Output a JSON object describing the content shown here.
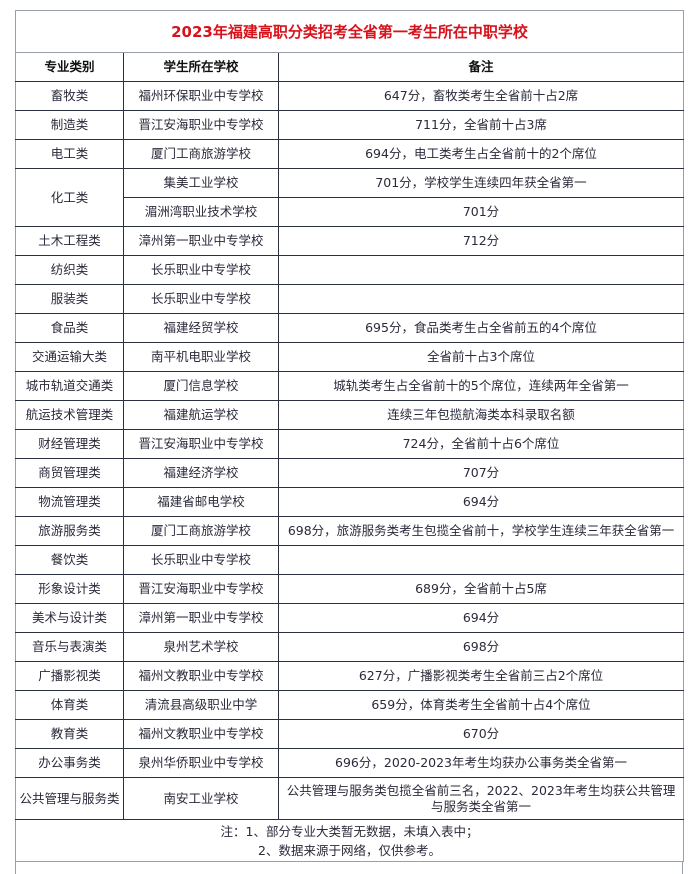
{
  "title": "2023年福建高职分类招考全省第一考生所在中职学校",
  "headers": [
    "专业类别",
    "学生所在学校",
    "备注"
  ],
  "rows": [
    {
      "category": "畜牧类",
      "schools": [
        {
          "school": "福州环保职业中专学校",
          "note": "647分，畜牧类考生全省前十占2席"
        }
      ]
    },
    {
      "category": "制造类",
      "schools": [
        {
          "school": "晋江安海职业中专学校",
          "note": "711分，全省前十占3席"
        }
      ]
    },
    {
      "category": "电工类",
      "schools": [
        {
          "school": "厦门工商旅游学校",
          "note": "694分，电工类考生占全省前十的2个席位"
        }
      ]
    },
    {
      "category": "化工类",
      "schools": [
        {
          "school": "集美工业学校",
          "note": "701分，学校学生连续四年获全省第一"
        },
        {
          "school": "湄洲湾职业技术学校",
          "note": "701分"
        }
      ]
    },
    {
      "category": "土木工程类",
      "schools": [
        {
          "school": "漳州第一职业中专学校",
          "note": "712分"
        }
      ]
    },
    {
      "category": "纺织类",
      "schools": [
        {
          "school": "长乐职业中专学校",
          "note": ""
        }
      ]
    },
    {
      "category": "服装类",
      "schools": [
        {
          "school": "长乐职业中专学校",
          "note": ""
        }
      ]
    },
    {
      "category": "食品类",
      "schools": [
        {
          "school": "福建经贸学校",
          "note": "695分，食品类考生占全省前五的4个席位"
        }
      ]
    },
    {
      "category": "交通运输大类",
      "schools": [
        {
          "school": "南平机电职业学校",
          "note": "全省前十占3个席位"
        }
      ]
    },
    {
      "category": "城市轨道交通类",
      "schools": [
        {
          "school": "厦门信息学校",
          "note": "城轨类考生占全省前十的5个席位，连续两年全省第一"
        }
      ]
    },
    {
      "category": "航运技术管理类",
      "schools": [
        {
          "school": "福建航运学校",
          "note": "连续三年包揽航海类本科录取名额"
        }
      ]
    },
    {
      "category": "财经管理类",
      "schools": [
        {
          "school": "晋江安海职业中专学校",
          "note": "724分，全省前十占6个席位"
        }
      ]
    },
    {
      "category": "商贸管理类",
      "schools": [
        {
          "school": "福建经济学校",
          "note": "707分"
        }
      ]
    },
    {
      "category": "物流管理类",
      "schools": [
        {
          "school": "福建省邮电学校",
          "note": "694分"
        }
      ]
    },
    {
      "category": "旅游服务类",
      "schools": [
        {
          "school": "厦门工商旅游学校",
          "note": "698分，旅游服务类考生包揽全省前十，学校学生连续三年获全省第一"
        }
      ]
    },
    {
      "category": "餐饮类",
      "schools": [
        {
          "school": "长乐职业中专学校",
          "note": ""
        }
      ]
    },
    {
      "category": "形象设计类",
      "schools": [
        {
          "school": "晋江安海职业中专学校",
          "note": "689分，全省前十占5席"
        }
      ]
    },
    {
      "category": "美术与设计类",
      "schools": [
        {
          "school": "漳州第一职业中专学校",
          "note": "694分"
        }
      ]
    },
    {
      "category": "音乐与表演类",
      "schools": [
        {
          "school": "泉州艺术学校",
          "note": "698分"
        }
      ]
    },
    {
      "category": "广播影视类",
      "schools": [
        {
          "school": "福州文教职业中专学校",
          "note": "627分，广播影视类考生全省前三占2个席位"
        }
      ]
    },
    {
      "category": "体育类",
      "schools": [
        {
          "school": "清流县高级职业中学",
          "note": "659分，体育类考生全省前十占4个席位"
        }
      ]
    },
    {
      "category": "教育类",
      "schools": [
        {
          "school": "福州文教职业中专学校",
          "note": "670分"
        }
      ]
    },
    {
      "category": "办公事务类",
      "schools": [
        {
          "school": "泉州华侨职业中专学校",
          "note": "696分，2020-2023年考生均获办公事务类全省第一"
        }
      ]
    },
    {
      "category": "公共管理与服务类",
      "schools": [
        {
          "school": "南安工业学校",
          "note": "公共管理与服务类包揽全省前三名，2022、2023年考生均获公共管理与服务类全省第一"
        }
      ]
    }
  ],
  "footnote": {
    "line1": "注：1、部分专业大类暂无数据，未填入表中；",
    "line2": "2、数据来源于网络，仅供参考。"
  },
  "colors": {
    "title": "#d8121b",
    "border": "#2b3040"
  }
}
